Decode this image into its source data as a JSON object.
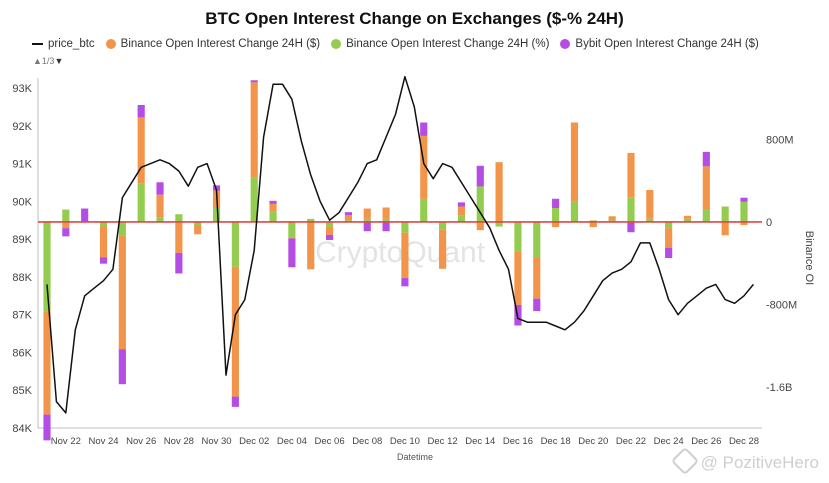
{
  "chart_data": {
    "type": "bar",
    "title": "BTC Open Interest Change on Exchanges ($-% 24H)",
    "xlabel": "Datetime",
    "ylabel_left": "",
    "ylabel_right": "Binance OI",
    "y_left_range": [
      84000,
      93000
    ],
    "y_left_ticks": [
      "84K",
      "85K",
      "86K",
      "87K",
      "88K",
      "89K",
      "90K",
      "91K",
      "92K",
      "93K"
    ],
    "y_right_range": [
      -2000000000,
      1300000000
    ],
    "y_right_ticks": [
      {
        "value": 800000000,
        "label": "800M"
      },
      {
        "value": 0,
        "label": "0"
      },
      {
        "value": -800000000,
        "label": "-800M"
      },
      {
        "value": -1600000000,
        "label": "-1.6B"
      }
    ],
    "x_ticks": [
      "Nov 22",
      "Nov 24",
      "Nov 26",
      "Nov 28",
      "Nov 30",
      "Dec 02",
      "Dec 04",
      "Dec 06",
      "Dec 08",
      "Dec 10",
      "Dec 12",
      "Dec 14",
      "Dec 16",
      "Dec 18",
      "Dec 20",
      "Dec 22",
      "Dec 24",
      "Dec 26",
      "Dec 28"
    ],
    "legend_position": "top-left",
    "pager": "1/3",
    "watermark": "CryptoQuant",
    "credit": "@ PozitiveHero",
    "colors": {
      "price": "#111111",
      "binance_usd": "#f2954b",
      "binance_pct": "#93cc4e",
      "bybit_usd": "#b44de3",
      "yellow": "#f3d250",
      "zero_line": "#e04545"
    },
    "series": [
      {
        "name": "price_btc",
        "kind": "line",
        "x": [
          "Nov 21",
          "Nov 21 12:00",
          "Nov 22",
          "Nov 22 12:00",
          "Nov 23",
          "Nov 23 12:00",
          "Nov 24",
          "Nov 24 12:00",
          "Nov 25",
          "Nov 26",
          "Nov 26 12:00",
          "Nov 27",
          "Nov 27 12:00",
          "Nov 28",
          "Nov 28 12:00",
          "Nov 29",
          "Nov 29 12:00",
          "Nov 30",
          "Nov 30 12:00",
          "Dec 01",
          "Dec 01 12:00",
          "Dec 02",
          "Dec 02 12:00",
          "Dec 03",
          "Dec 03 12:00",
          "Dec 04",
          "Dec 04 12:00",
          "Dec 05",
          "Dec 05 12:00",
          "Dec 06",
          "Dec 06 12:00",
          "Dec 07",
          "Dec 07 12:00",
          "Dec 08",
          "Dec 08 12:00",
          "Dec 09",
          "Dec 09 12:00",
          "Dec 10",
          "Dec 10 12:00",
          "Dec 11",
          "Dec 11 12:00",
          "Dec 12",
          "Dec 12 12:00",
          "Dec 13",
          "Dec 13 12:00",
          "Dec 14",
          "Dec 14 12:00",
          "Dec 15",
          "Dec 15 12:00",
          "Dec 16",
          "Dec 16 12:00",
          "Dec 17",
          "Dec 17 12:00",
          "Dec 18",
          "Dec 18 12:00",
          "Dec 19",
          "Dec 19 12:00",
          "Dec 20",
          "Dec 20 12:00",
          "Dec 21",
          "Dec 21 12:00",
          "Dec 22",
          "Dec 22 12:00",
          "Dec 23",
          "Dec 23 12:00",
          "Dec 24",
          "Dec 24 12:00",
          "Dec 25",
          "Dec 25 12:00",
          "Dec 26",
          "Dec 26 12:00",
          "Dec 27",
          "Dec 27 12:00",
          "Dec 28",
          "Dec 28 12:00"
        ],
        "values": [
          87800,
          84700,
          84400,
          86600,
          87500,
          87700,
          87900,
          88200,
          90100,
          90900,
          91000,
          91100,
          91000,
          90800,
          90400,
          90900,
          91000,
          90300,
          85400,
          87000,
          87400,
          88700,
          91700,
          93100,
          93100,
          92700,
          91600,
          90700,
          90000,
          89500,
          89700,
          90100,
          90500,
          91000,
          91100,
          91700,
          92300,
          93300,
          92500,
          91000,
          90600,
          91000,
          90900,
          90500,
          90100,
          89700,
          89300,
          88700,
          88200,
          86900,
          86800,
          86800,
          86800,
          86700,
          86600,
          86800,
          87100,
          87500,
          87900,
          88100,
          88200,
          88400,
          88900,
          88900,
          88200,
          87400,
          87000,
          87300,
          87500,
          87700,
          87800,
          87400,
          87300,
          87500,
          87800
        ]
      },
      {
        "name": "Binance Open Interest Change 24H ($)",
        "kind": "bar",
        "x": [
          "Nov 21",
          "Nov 22",
          "Nov 23",
          "Nov 24",
          "Nov 25",
          "Nov 26",
          "Nov 27",
          "Nov 28",
          "Nov 29",
          "Nov 30",
          "Dec 01",
          "Dec 02",
          "Dec 03",
          "Dec 04",
          "Dec 05",
          "Dec 06",
          "Dec 07",
          "Dec 08",
          "Dec 09",
          "Dec 10",
          "Dec 11",
          "Dec 12",
          "Dec 13",
          "Dec 14",
          "Dec 15",
          "Dec 16",
          "Dec 17",
          "Dec 18",
          "Dec 19",
          "Dec 20",
          "Dec 21",
          "Dec 22",
          "Dec 23",
          "Dec 24",
          "Dec 25",
          "Dec 26",
          "Dec 27",
          "Dec 28"
        ],
        "values": [
          -1000000000,
          -60000000,
          0,
          -300000000,
          -1100000000,
          640000000,
          220000000,
          -300000000,
          -90000000,
          170000000,
          -1260000000,
          920000000,
          70000000,
          -10000000,
          -460000000,
          -80000000,
          50000000,
          100000000,
          110000000,
          -440000000,
          610000000,
          -380000000,
          90000000,
          -80000000,
          580000000,
          -520000000,
          -400000000,
          -50000000,
          770000000,
          -50000000,
          40000000,
          430000000,
          280000000,
          -190000000,
          30000000,
          420000000,
          -130000000,
          -30000000
        ]
      },
      {
        "name": "Binance Open Interest Change 24H (%)",
        "kind": "bar",
        "x": [
          "Nov 21",
          "Nov 22",
          "Nov 23",
          "Nov 24",
          "Nov 25",
          "Nov 26",
          "Nov 27",
          "Nov 28",
          "Nov 29",
          "Nov 30",
          "Dec 01",
          "Dec 02",
          "Dec 03",
          "Dec 04",
          "Dec 05",
          "Dec 06",
          "Dec 07",
          "Dec 08",
          "Dec 09",
          "Dec 10",
          "Dec 11",
          "Dec 12",
          "Dec 13",
          "Dec 14",
          "Dec 15",
          "Dec 16",
          "Dec 17",
          "Dec 18",
          "Dec 19",
          "Dec 20",
          "Dec 21",
          "Dec 22",
          "Dec 23",
          "Dec 24",
          "Dec 25",
          "Dec 26",
          "Dec 27",
          "Dec 28"
        ],
        "values": [
          -5.8,
          0.8,
          0.0,
          -0.3,
          -0.9,
          2.5,
          0.3,
          0.5,
          -0.2,
          0.9,
          -2.9,
          2.9,
          0.7,
          -1.0,
          0.2,
          -0.3,
          0.1,
          0.2,
          0.2,
          -0.7,
          1.5,
          -0.5,
          0.4,
          2.3,
          -0.3,
          -1.9,
          -2.3,
          0.9,
          1.3,
          0.1,
          0.1,
          1.6,
          0.2,
          -0.4,
          0.2,
          0.8,
          1.0,
          1.3
        ]
      },
      {
        "name": "Bybit Open Interest Change 24H ($)",
        "kind": "bar",
        "x": [
          "Nov 21",
          "Nov 22",
          "Nov 23",
          "Nov 24",
          "Nov 25",
          "Nov 26",
          "Nov 27",
          "Nov 28",
          "Nov 29",
          "Nov 30",
          "Dec 01",
          "Dec 02",
          "Dec 03",
          "Dec 04",
          "Dec 05",
          "Dec 06",
          "Dec 07",
          "Dec 08",
          "Dec 09",
          "Dec 10",
          "Dec 11",
          "Dec 12",
          "Dec 13",
          "Dec 14",
          "Dec 15",
          "Dec 16",
          "Dec 17",
          "Dec 18",
          "Dec 19",
          "Dec 20",
          "Dec 21",
          "Dec 22",
          "Dec 23",
          "Dec 24",
          "Dec 25",
          "Dec 26",
          "Dec 27",
          "Dec 28"
        ],
        "values": [
          -250000000,
          -80000000,
          130000000,
          -60000000,
          -340000000,
          120000000,
          120000000,
          -200000000,
          0,
          50000000,
          -100000000,
          20000000,
          30000000,
          -280000000,
          0,
          -50000000,
          30000000,
          -90000000,
          -90000000,
          -80000000,
          130000000,
          0,
          40000000,
          200000000,
          0,
          -200000000,
          -120000000,
          90000000,
          0,
          0,
          0,
          -100000000,
          0,
          -100000000,
          0,
          140000000,
          0,
          40000000
        ]
      }
    ]
  }
}
